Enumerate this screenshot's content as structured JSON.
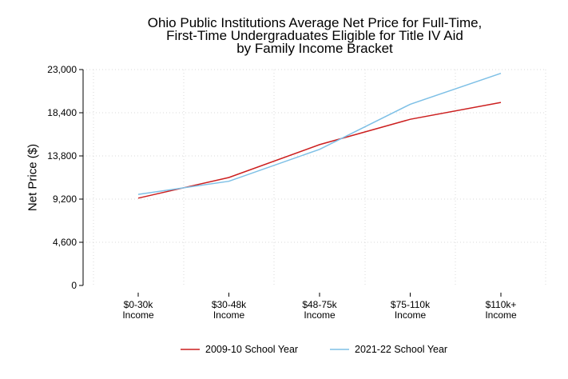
{
  "chart_data": {
    "type": "line",
    "title": [
      "Ohio Public Institutions Average Net Price for Full-Time,",
      "First-Time Undergraduates Eligible for Title IV Aid",
      "by Family Income Bracket"
    ],
    "xlabel": "",
    "ylabel": "Net Price ($)",
    "ylim": [
      0,
      23000
    ],
    "yticks": [
      0,
      4600,
      9200,
      13800,
      18400,
      23000
    ],
    "ytick_labels": [
      "0",
      "4,600",
      "9,200",
      "13,800",
      "18,400",
      "23,000"
    ],
    "categories": [
      [
        "$0-30k",
        "Income"
      ],
      [
        "$30-48k",
        "Income"
      ],
      [
        "$48-75k",
        "Income"
      ],
      [
        "$75-110k",
        "Income"
      ],
      [
        "$110k+",
        "Income"
      ]
    ],
    "grid": true,
    "legend_position": "bottom",
    "series": [
      {
        "name": "2009-10 School Year",
        "color": "#cc1f1f",
        "values": [
          9300,
          11500,
          15000,
          17700,
          19500
        ]
      },
      {
        "name": "2021-22 School Year",
        "color": "#7ec0e6",
        "values": [
          9700,
          11100,
          14500,
          19300,
          22600
        ]
      }
    ]
  }
}
